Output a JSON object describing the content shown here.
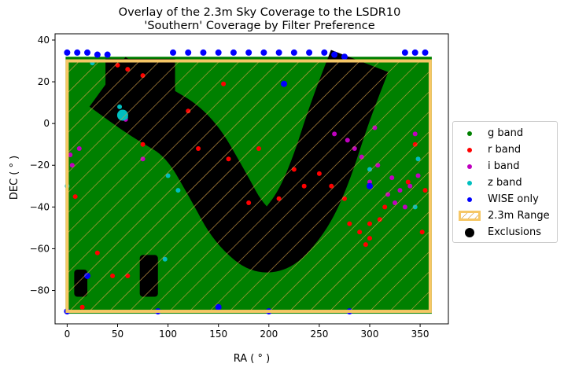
{
  "title": {
    "line1": "Overlay of the 2.3m Sky Coverage to the LSDR10",
    "line2": "'Southern' Coverage by Filter Preference"
  },
  "chart_data": {
    "type": "scatter",
    "xlabel": "RA ( ° )",
    "ylabel": "DEC ( ° )",
    "xlim": [
      -12,
      378
    ],
    "ylim": [
      -96,
      43
    ],
    "xticks": [
      0,
      50,
      100,
      150,
      200,
      250,
      300,
      350
    ],
    "yticks": [
      -80,
      -60,
      -40,
      -20,
      0,
      20,
      40
    ],
    "grid": false,
    "legend_placement": "outside-right",
    "colors": {
      "g": "#008000",
      "r": "#ff0000",
      "i": "#bf00bf",
      "z": "#00bfbf",
      "wise": "#0000ff",
      "range_edge": "#f6c766",
      "range_hatch": "#d7a24b",
      "exclusion": "#000000"
    },
    "series": [
      {
        "name": "g band",
        "key": "g",
        "region": {
          "ra": [
            0,
            360
          ],
          "dec": [
            -90,
            32
          ]
        }
      },
      {
        "name": "r band",
        "key": "r",
        "points": [
          [
            50,
            28
          ],
          [
            60,
            26
          ],
          [
            75,
            23
          ],
          [
            155,
            19
          ],
          [
            120,
            6
          ],
          [
            75,
            -10
          ],
          [
            130,
            -12
          ],
          [
            160,
            -17
          ],
          [
            190,
            -12
          ],
          [
            225,
            -22
          ],
          [
            235,
            -30
          ],
          [
            210,
            -36
          ],
          [
            180,
            -38
          ],
          [
            250,
            -24
          ],
          [
            262,
            -30
          ],
          [
            275,
            -36
          ],
          [
            290,
            -52
          ],
          [
            300,
            -48
          ],
          [
            315,
            -40
          ],
          [
            338,
            -28
          ],
          [
            345,
            -10
          ],
          [
            355,
            -32
          ],
          [
            30,
            -62
          ],
          [
            45,
            -73
          ],
          [
            60,
            -73
          ],
          [
            15,
            -88
          ],
          [
            8,
            -35
          ],
          [
            352,
            -52
          ],
          [
            310,
            -46
          ],
          [
            296,
            -58
          ],
          [
            300,
            -55
          ],
          [
            280,
            -48
          ]
        ]
      },
      {
        "name": "i band",
        "key": "i",
        "points": [
          [
            5,
            -20
          ],
          [
            3,
            -15
          ],
          [
            12,
            -12
          ],
          [
            58,
            2
          ],
          [
            75,
            -17
          ],
          [
            265,
            -5
          ],
          [
            278,
            -8
          ],
          [
            285,
            -12
          ],
          [
            292,
            -16
          ],
          [
            318,
            -34
          ],
          [
            325,
            -38
          ],
          [
            330,
            -32
          ],
          [
            340,
            -30
          ],
          [
            348,
            -25
          ],
          [
            322,
            -26
          ],
          [
            335,
            -40
          ],
          [
            305,
            -2
          ],
          [
            345,
            -5
          ],
          [
            300,
            -28
          ],
          [
            308,
            -20
          ]
        ]
      },
      {
        "name": "z band",
        "key": "z",
        "points": [
          [
            55,
            5
          ],
          [
            58,
            3
          ],
          [
            52,
            8
          ],
          [
            0,
            -30
          ],
          [
            97,
            -65
          ],
          [
            300,
            -22
          ],
          [
            345,
            -40
          ],
          [
            348,
            -17
          ],
          [
            100,
            -25
          ],
          [
            110,
            -32
          ],
          [
            25,
            29
          ]
        ]
      },
      {
        "name": "WISE only",
        "key": "wise",
        "points": [
          [
            0,
            34
          ],
          [
            10,
            34
          ],
          [
            20,
            34
          ],
          [
            30,
            33
          ],
          [
            40,
            33
          ],
          [
            105,
            34
          ],
          [
            120,
            34
          ],
          [
            135,
            34
          ],
          [
            150,
            34
          ],
          [
            165,
            34
          ],
          [
            180,
            34
          ],
          [
            195,
            34
          ],
          [
            210,
            34
          ],
          [
            225,
            34
          ],
          [
            240,
            34
          ],
          [
            255,
            34
          ],
          [
            265,
            33
          ],
          [
            275,
            32
          ],
          [
            335,
            34
          ],
          [
            345,
            34
          ],
          [
            355,
            34
          ],
          [
            215,
            19
          ],
          [
            300,
            -30
          ],
          [
            0,
            -90
          ],
          [
            90,
            -90
          ],
          [
            150,
            -88
          ],
          [
            200,
            -90
          ],
          [
            280,
            -90
          ],
          [
            20,
            -73
          ]
        ]
      }
    ],
    "overlay": {
      "name": "2.3m Range",
      "ra": [
        0,
        360
      ],
      "dec": [
        -90,
        30
      ]
    },
    "exclusions": {
      "name": "Exclusions",
      "band_centerline": [
        [
          40,
          20
        ],
        [
          80,
          6
        ],
        [
          120,
          -5
        ],
        [
          150,
          -30
        ],
        [
          170,
          -48
        ],
        [
          200,
          -60
        ],
        [
          230,
          -45
        ],
        [
          250,
          -25
        ],
        [
          270,
          5
        ],
        [
          290,
          30
        ]
      ],
      "boxes": [
        {
          "ra": [
            7,
            20
          ],
          "dec": [
            -70,
            -83
          ]
        },
        {
          "ra": [
            72,
            90
          ],
          "dec": [
            -63,
            -83
          ]
        }
      ]
    }
  },
  "legend": {
    "items": [
      {
        "label": "g band",
        "kind": "dot",
        "color": "#008000"
      },
      {
        "label": "r band",
        "kind": "dot",
        "color": "#ff0000"
      },
      {
        "label": "i band",
        "kind": "dot",
        "color": "#bf00bf"
      },
      {
        "label": "z band",
        "kind": "dot",
        "color": "#00bfbf"
      },
      {
        "label": "WISE only",
        "kind": "dot",
        "color": "#0000ff"
      },
      {
        "label": "2.3m Range",
        "kind": "hatch",
        "color": "#f6c766"
      },
      {
        "label": "Exclusions",
        "kind": "big",
        "color": "#000000"
      }
    ]
  }
}
